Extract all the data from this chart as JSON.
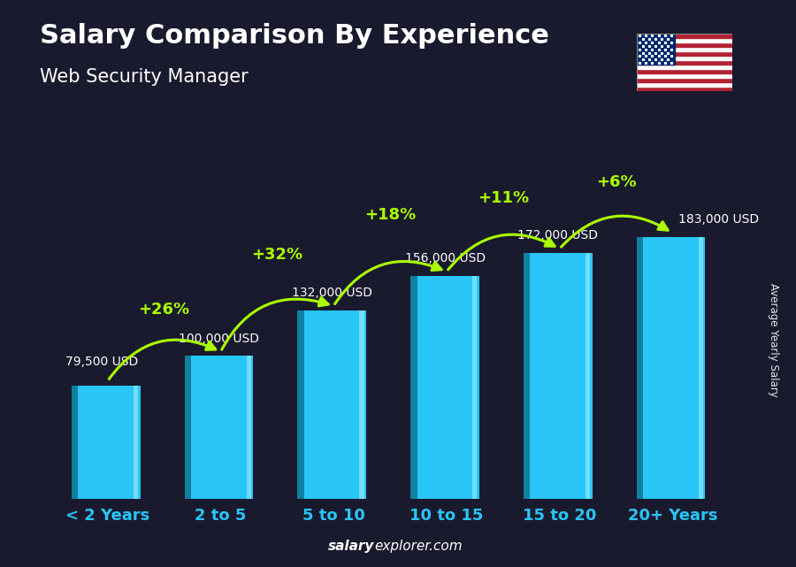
{
  "title": "Salary Comparison By Experience",
  "subtitle": "Web Security Manager",
  "categories": [
    "< 2 Years",
    "2 to 5",
    "5 to 10",
    "10 to 15",
    "15 to 20",
    "20+ Years"
  ],
  "values": [
    79500,
    100000,
    132000,
    156000,
    172000,
    183000
  ],
  "salary_labels": [
    "79,500 USD",
    "100,000 USD",
    "132,000 USD",
    "156,000 USD",
    "172,000 USD",
    "183,000 USD"
  ],
  "pct_labels": [
    "+26%",
    "+32%",
    "+18%",
    "+11%",
    "+6%"
  ],
  "bar_color_main": "#29c5f6",
  "bar_color_dark": "#1080a0",
  "bar_color_light": "#70deff",
  "bg_color": "#1a1a2e",
  "title_color": "#ffffff",
  "subtitle_color": "#ffffff",
  "salary_label_color": "#ffffff",
  "pct_color": "#aaff00",
  "xtick_color": "#29c5f6",
  "ylabel_text": "Average Yearly Salary",
  "footer_salary": "salary",
  "footer_rest": "explorer.com",
  "ylim_max": 230000,
  "bar_width": 0.58
}
